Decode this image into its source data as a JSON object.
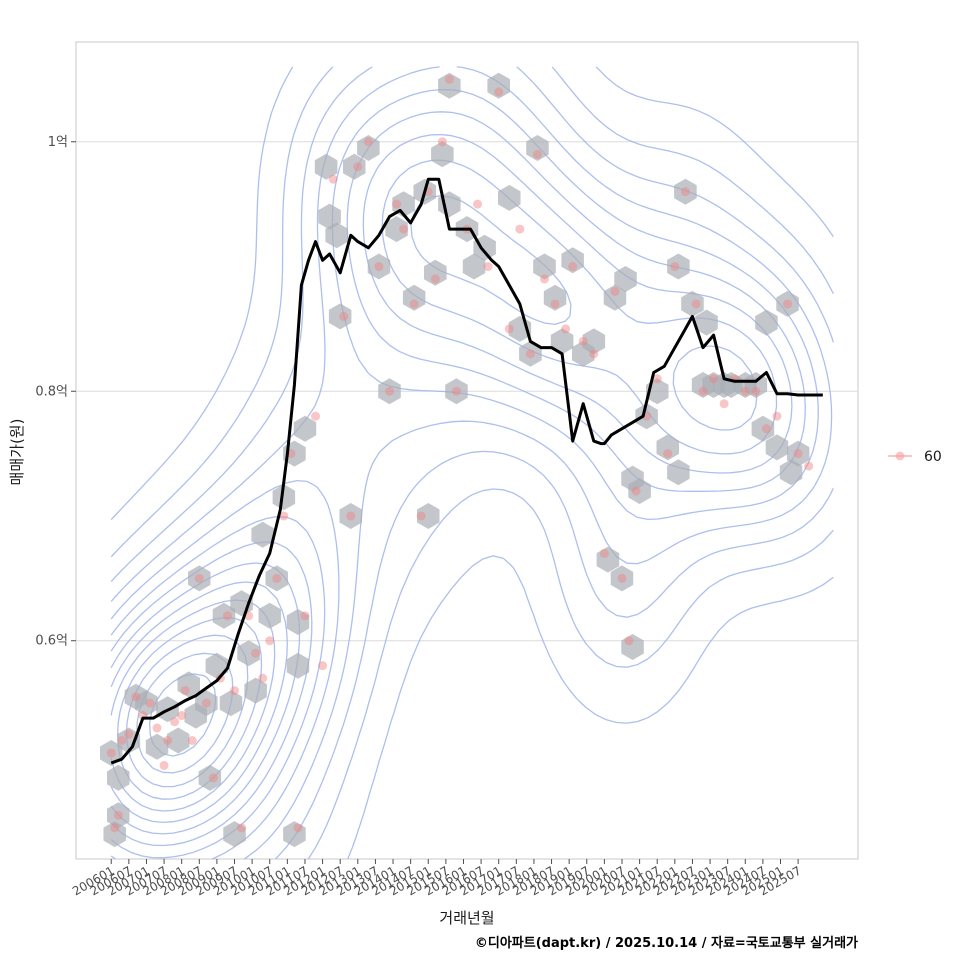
{
  "chart_data": {
    "type": "line",
    "xlabel": "거래년월",
    "ylabel": "매매가(원)",
    "caption": "©디아파트(dapt.kr) / 2025.10.14 / 자료=국토교통부 실거래가",
    "x_tick_labels": [
      "200601",
      "200607",
      "200701",
      "200707",
      "200801",
      "200807",
      "200901",
      "200907",
      "201001",
      "201007",
      "201101",
      "201107",
      "201201",
      "201207",
      "201301",
      "201307",
      "201401",
      "201407",
      "201501",
      "201507",
      "201601",
      "201607",
      "201701",
      "201707",
      "201801",
      "201807",
      "201901",
      "201907",
      "202001",
      "202007",
      "202101",
      "202107",
      "202201",
      "202207",
      "202301",
      "202307",
      "202401",
      "202407",
      "202501",
      "202507"
    ],
    "y_ticks": [
      {
        "label": "0.6억",
        "value": 6000
      },
      {
        "label": "0.8억",
        "value": 8000
      },
      {
        "label": "1억",
        "value": 10000
      }
    ],
    "ylim": [
      4250,
      10800
    ],
    "xlim": [
      2005.0,
      2027.2
    ],
    "grid": "horizontal",
    "legend": {
      "position": "right",
      "entries": [
        {
          "label": "60",
          "color": "#f4a0a0"
        }
      ]
    },
    "colors": {
      "line": "#000000",
      "points": "#f08080",
      "hex": "#a9aeb5",
      "contour": "#9fb4ea",
      "grid": "#dcdcdc"
    },
    "series": [
      {
        "role": "moving-average-line",
        "x": [
          2006.0,
          2006.3,
          2006.6,
          2006.9,
          2007.2,
          2007.5,
          2007.8,
          2008.1,
          2008.4,
          2008.7,
          2009.0,
          2009.3,
          2009.6,
          2009.9,
          2010.2,
          2010.5,
          2010.8,
          2011.0,
          2011.2,
          2011.4,
          2011.6,
          2011.8,
          2012.0,
          2012.2,
          2012.5,
          2012.8,
          2013.0,
          2013.3,
          2013.6,
          2013.9,
          2014.2,
          2014.5,
          2014.8,
          2015.0,
          2015.3,
          2015.6,
          2015.9,
          2016.2,
          2016.5,
          2016.8,
          2017.0,
          2017.3,
          2017.6,
          2017.9,
          2018.2,
          2018.5,
          2018.8,
          2019.1,
          2019.4,
          2019.7,
          2019.9,
          2020.0,
          2020.2,
          2020.5,
          2020.8,
          2021.1,
          2021.4,
          2021.7,
          2021.9,
          2022.2,
          2022.5,
          2022.8,
          2023.1,
          2023.4,
          2023.7,
          2024.0,
          2024.3,
          2024.6,
          2024.9,
          2025.2,
          2025.5,
          2025.8,
          2026.2
        ],
        "y": [
          5020,
          5050,
          5150,
          5380,
          5380,
          5430,
          5470,
          5520,
          5560,
          5620,
          5680,
          5780,
          6050,
          6300,
          6520,
          6700,
          7050,
          7500,
          8050,
          8850,
          9050,
          9200,
          9050,
          9100,
          8950,
          9250,
          9200,
          9150,
          9250,
          9400,
          9450,
          9350,
          9500,
          9700,
          9700,
          9300,
          9300,
          9300,
          9150,
          9050,
          9000,
          8850,
          8700,
          8400,
          8350,
          8350,
          8300,
          7600,
          7900,
          7600,
          7580,
          7580,
          7650,
          7700,
          7750,
          7800,
          8150,
          8200,
          8300,
          8450,
          8600,
          8350,
          8450,
          8100,
          8080,
          8080,
          8080,
          8150,
          7980,
          7980,
          7970,
          7970,
          7970
        ]
      },
      {
        "role": "transactions-scatter",
        "points": [
          [
            2006.0,
            5100
          ],
          [
            2006.1,
            4500
          ],
          [
            2006.2,
            4600
          ],
          [
            2006.3,
            5200
          ],
          [
            2006.5,
            5250
          ],
          [
            2006.7,
            5550
          ],
          [
            2006.9,
            5400
          ],
          [
            2007.1,
            5500
          ],
          [
            2007.3,
            5300
          ],
          [
            2007.5,
            5000
          ],
          [
            2007.6,
            5200
          ],
          [
            2007.8,
            5350
          ],
          [
            2008.0,
            5400
          ],
          [
            2008.1,
            5600
          ],
          [
            2008.3,
            5200
          ],
          [
            2008.5,
            6500
          ],
          [
            2008.7,
            5500
          ],
          [
            2008.9,
            4900
          ],
          [
            2009.1,
            5700
          ],
          [
            2009.3,
            6200
          ],
          [
            2009.5,
            5600
          ],
          [
            2009.7,
            4500
          ],
          [
            2009.9,
            6200
          ],
          [
            2010.1,
            5900
          ],
          [
            2010.3,
            5700
          ],
          [
            2010.5,
            6000
          ],
          [
            2010.7,
            6500
          ],
          [
            2010.9,
            7000
          ],
          [
            2011.1,
            7500
          ],
          [
            2011.3,
            4500
          ],
          [
            2011.5,
            6200
          ],
          [
            2011.8,
            7800
          ],
          [
            2012.0,
            5800
          ],
          [
            2012.3,
            9700
          ],
          [
            2012.6,
            8600
          ],
          [
            2012.8,
            7000
          ],
          [
            2013.0,
            9800
          ],
          [
            2013.3,
            10000
          ],
          [
            2013.6,
            9000
          ],
          [
            2013.9,
            8000
          ],
          [
            2014.1,
            9500
          ],
          [
            2014.3,
            9300
          ],
          [
            2014.6,
            8700
          ],
          [
            2014.8,
            7000
          ],
          [
            2015.0,
            9600
          ],
          [
            2015.2,
            8900
          ],
          [
            2015.4,
            10000
          ],
          [
            2015.6,
            10500
          ],
          [
            2015.8,
            8000
          ],
          [
            2016.1,
            9300
          ],
          [
            2016.4,
            9500
          ],
          [
            2016.7,
            9000
          ],
          [
            2017.0,
            10400
          ],
          [
            2017.3,
            8500
          ],
          [
            2017.6,
            9300
          ],
          [
            2017.9,
            8300
          ],
          [
            2018.1,
            9900
          ],
          [
            2018.3,
            8900
          ],
          [
            2018.6,
            8700
          ],
          [
            2018.9,
            8500
          ],
          [
            2019.1,
            9000
          ],
          [
            2019.4,
            8400
          ],
          [
            2019.7,
            8300
          ],
          [
            2020.0,
            6700
          ],
          [
            2020.3,
            8800
          ],
          [
            2020.5,
            6500
          ],
          [
            2020.7,
            6000
          ],
          [
            2020.9,
            7200
          ],
          [
            2021.2,
            7800
          ],
          [
            2021.5,
            8100
          ],
          [
            2021.8,
            7500
          ],
          [
            2022.0,
            9000
          ],
          [
            2022.3,
            9600
          ],
          [
            2022.6,
            8700
          ],
          [
            2022.8,
            8000
          ],
          [
            2023.1,
            8100
          ],
          [
            2023.4,
            7900
          ],
          [
            2023.7,
            8100
          ],
          [
            2024.0,
            8000
          ],
          [
            2024.3,
            8000
          ],
          [
            2024.6,
            7700
          ],
          [
            2024.9,
            7800
          ],
          [
            2025.2,
            8700
          ],
          [
            2025.5,
            7500
          ],
          [
            2025.8,
            7400
          ]
        ]
      }
    ],
    "hexbin_centers": [
      [
        2006.0,
        5100
      ],
      [
        2006.1,
        4450
      ],
      [
        2006.2,
        4600
      ],
      [
        2006.2,
        4900
      ],
      [
        2006.5,
        5200
      ],
      [
        2006.7,
        5550
      ],
      [
        2007.0,
        5500
      ],
      [
        2007.3,
        5150
      ],
      [
        2007.6,
        5450
      ],
      [
        2007.9,
        5200
      ],
      [
        2008.2,
        5650
      ],
      [
        2008.4,
        5400
      ],
      [
        2008.5,
        6500
      ],
      [
        2008.7,
        5500
      ],
      [
        2008.8,
        4900
      ],
      [
        2009.0,
        5800
      ],
      [
        2009.2,
        6200
      ],
      [
        2009.4,
        5500
      ],
      [
        2009.5,
        4450
      ],
      [
        2009.7,
        6300
      ],
      [
        2009.9,
        5900
      ],
      [
        2010.1,
        5600
      ],
      [
        2010.3,
        6850
      ],
      [
        2010.5,
        6200
      ],
      [
        2010.7,
        6500
      ],
      [
        2010.9,
        7150
      ],
      [
        2011.2,
        7500
      ],
      [
        2011.2,
        4450
      ],
      [
        2011.3,
        6150
      ],
      [
        2011.3,
        5800
      ],
      [
        2011.5,
        7700
      ],
      [
        2012.1,
        9800
      ],
      [
        2012.2,
        9400
      ],
      [
        2012.4,
        9250
      ],
      [
        2012.5,
        8600
      ],
      [
        2012.8,
        7000
      ],
      [
        2012.9,
        9800
      ],
      [
        2013.3,
        9950
      ],
      [
        2013.6,
        9000
      ],
      [
        2013.9,
        8000
      ],
      [
        2014.1,
        9300
      ],
      [
        2014.3,
        9500
      ],
      [
        2014.6,
        8750
      ],
      [
        2014.9,
        9600
      ],
      [
        2015.0,
        7000
      ],
      [
        2015.2,
        8950
      ],
      [
        2015.4,
        9900
      ],
      [
        2015.6,
        10450
      ],
      [
        2015.6,
        9500
      ],
      [
        2015.8,
        8000
      ],
      [
        2016.1,
        9300
      ],
      [
        2016.3,
        9000
      ],
      [
        2016.6,
        9150
      ],
      [
        2017.0,
        10450
      ],
      [
        2017.3,
        9550
      ],
      [
        2017.6,
        8500
      ],
      [
        2017.9,
        8300
      ],
      [
        2018.1,
        9950
      ],
      [
        2018.3,
        9000
      ],
      [
        2018.6,
        8750
      ],
      [
        2018.8,
        8400
      ],
      [
        2019.1,
        9050
      ],
      [
        2019.4,
        8300
      ],
      [
        2019.7,
        8400
      ],
      [
        2020.1,
        6650
      ],
      [
        2020.3,
        8750
      ],
      [
        2020.5,
        6500
      ],
      [
        2020.6,
        8900
      ],
      [
        2020.8,
        5950
      ],
      [
        2020.8,
        7300
      ],
      [
        2021.0,
        7200
      ],
      [
        2021.2,
        7800
      ],
      [
        2021.5,
        8000
      ],
      [
        2021.8,
        7550
      ],
      [
        2022.1,
        7350
      ],
      [
        2022.1,
        9000
      ],
      [
        2022.3,
        9600
      ],
      [
        2022.5,
        8700
      ],
      [
        2022.8,
        8050
      ],
      [
        2022.9,
        8550
      ],
      [
        2023.1,
        8050
      ],
      [
        2023.4,
        8050
      ],
      [
        2023.6,
        8050
      ],
      [
        2024.0,
        8050
      ],
      [
        2024.3,
        8050
      ],
      [
        2024.5,
        7700
      ],
      [
        2024.6,
        8550
      ],
      [
        2024.9,
        7550
      ],
      [
        2025.2,
        8700
      ],
      [
        2025.3,
        7350
      ],
      [
        2025.5,
        7500
      ]
    ]
  }
}
